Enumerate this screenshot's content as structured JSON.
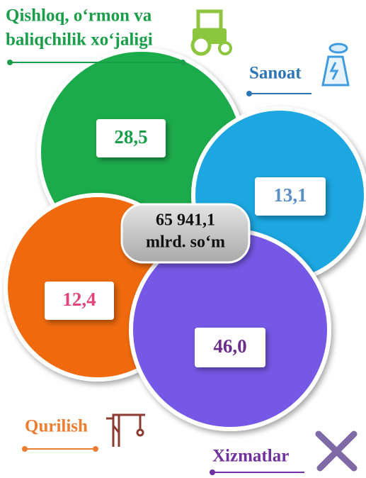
{
  "center": {
    "line1": "65 941,1",
    "line2": "mlrd. so‘m"
  },
  "sectors": [
    {
      "label_lines": [
        "Qishloq, o‘rmon va",
        "baliqchilik xo‘jaligi"
      ],
      "value": "28,5"
    },
    {
      "label_lines": [
        "Sanoat"
      ],
      "value": "13,1"
    },
    {
      "label_lines": [
        "Qurilish"
      ],
      "value": "12,4"
    },
    {
      "label_lines": [
        "Xizmatlar"
      ],
      "value": "46,0"
    }
  ]
}
